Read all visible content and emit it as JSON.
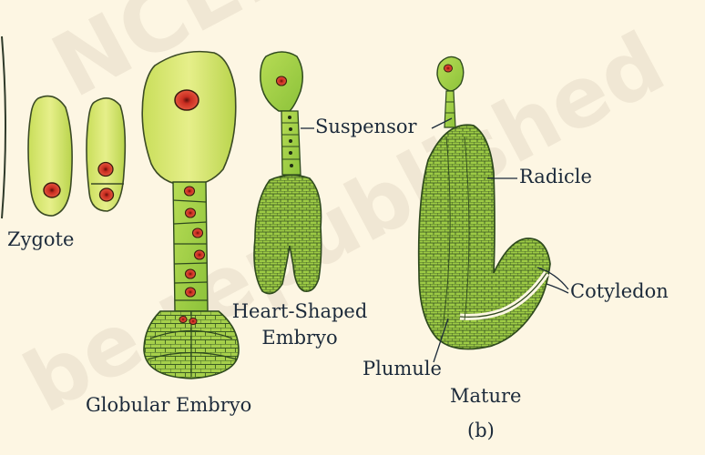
{
  "labels": {
    "zygote": "Zygote",
    "globular": "Globular Embryo",
    "heart_line1": "Heart-Shaped",
    "heart_line2": "Embryo",
    "suspensor": "Suspensor",
    "radicle": "Radicle",
    "cotyledon": "Cotyledon",
    "plumule": "Plumule",
    "mature": "Mature",
    "panel": "(b)"
  },
  "watermark": {
    "line1": "NCERT",
    "line2": "be republished"
  },
  "colors": {
    "background": "#fdf6e3",
    "cell_fill": "#a8d14a",
    "cell_fill_light": "#d6e878",
    "cell_outline": "#2f4a1e",
    "nucleus_fill": "#d93a2b",
    "label_text": "#1c2a3a"
  }
}
